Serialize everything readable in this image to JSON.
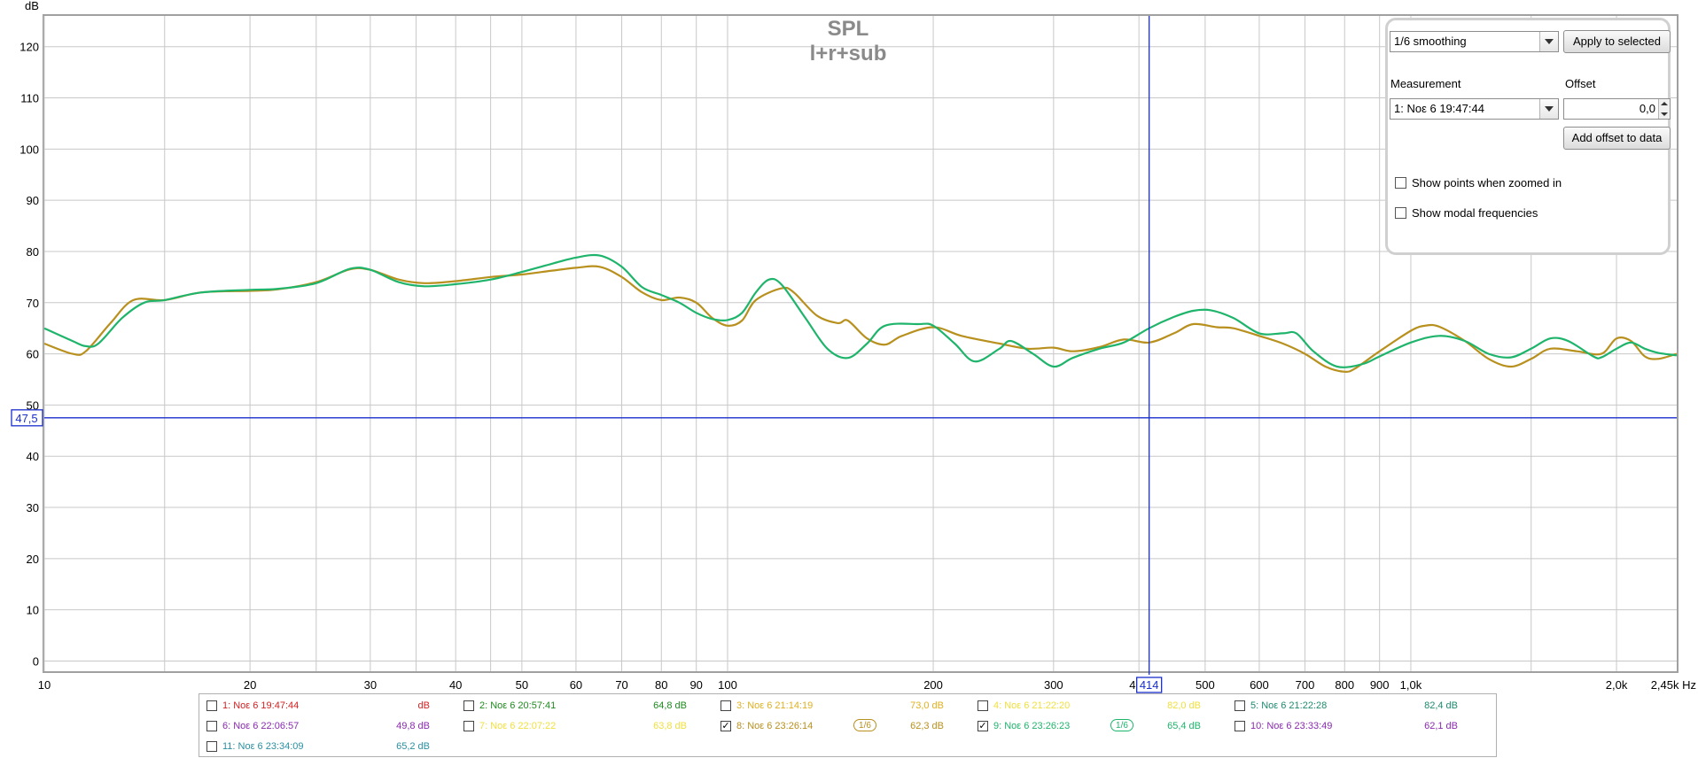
{
  "chart_data": {
    "type": "line",
    "title": "SPL",
    "subtitle": "l+r+sub",
    "ylabel": "dB",
    "xunit": "Hz",
    "xscale": "log",
    "xlim": [
      10,
      2450
    ],
    "ylim": [
      -2,
      126
    ],
    "grid": true,
    "y_ticks": [
      0,
      10,
      20,
      30,
      40,
      50,
      60,
      70,
      80,
      90,
      100,
      110,
      120
    ],
    "x_ticks": [
      {
        "v": 10,
        "label": "10"
      },
      {
        "v": 20,
        "label": "20"
      },
      {
        "v": 30,
        "label": "30"
      },
      {
        "v": 40,
        "label": "40"
      },
      {
        "v": 50,
        "label": "50"
      },
      {
        "v": 60,
        "label": "60"
      },
      {
        "v": 70,
        "label": "70"
      },
      {
        "v": 80,
        "label": "80"
      },
      {
        "v": 90,
        "label": "90"
      },
      {
        "v": 100,
        "label": "100"
      },
      {
        "v": 200,
        "label": "200"
      },
      {
        "v": 300,
        "label": "300"
      },
      {
        "v": 400,
        "label": "400"
      },
      {
        "v": 500,
        "label": "500"
      },
      {
        "v": 600,
        "label": "600"
      },
      {
        "v": 700,
        "label": "700"
      },
      {
        "v": 800,
        "label": "800"
      },
      {
        "v": 900,
        "label": "900"
      },
      {
        "v": 1000,
        "label": "1,0k"
      },
      {
        "v": 2000,
        "label": "2,0k"
      },
      {
        "v": 2450,
        "label": "2,45k Hz"
      }
    ],
    "minor_x_ticks": [
      15,
      25,
      35,
      45,
      1500
    ],
    "cursor": {
      "x": 414,
      "y": 47.5,
      "x_label": "414",
      "y_label": "47,5"
    },
    "series": [
      {
        "name": "8: Noε 6 23:26:14",
        "color": "#b8901e",
        "points": [
          [
            10,
            62
          ],
          [
            11,
            60
          ],
          [
            11.5,
            60.5
          ],
          [
            12.5,
            66
          ],
          [
            13.5,
            70.5
          ],
          [
            15,
            70.5
          ],
          [
            17,
            72
          ],
          [
            20,
            72.3
          ],
          [
            22,
            72.6
          ],
          [
            25,
            74
          ],
          [
            28,
            76.5
          ],
          [
            30,
            76.4
          ],
          [
            33,
            74.5
          ],
          [
            36,
            73.8
          ],
          [
            40,
            74.2
          ],
          [
            45,
            75
          ],
          [
            50,
            75.5
          ],
          [
            55,
            76.2
          ],
          [
            60,
            76.8
          ],
          [
            65,
            77
          ],
          [
            70,
            75
          ],
          [
            75,
            72
          ],
          [
            80,
            70.5
          ],
          [
            85,
            71
          ],
          [
            90,
            70
          ],
          [
            95,
            67
          ],
          [
            100,
            65.5
          ],
          [
            105,
            66.5
          ],
          [
            110,
            70.5
          ],
          [
            120,
            72.8
          ],
          [
            125,
            72
          ],
          [
            135,
            67.5
          ],
          [
            145,
            66
          ],
          [
            150,
            66.5
          ],
          [
            160,
            63
          ],
          [
            170,
            61.8
          ],
          [
            180,
            63.5
          ],
          [
            200,
            65.2
          ],
          [
            220,
            63.5
          ],
          [
            250,
            62
          ],
          [
            275,
            61
          ],
          [
            300,
            61.2
          ],
          [
            320,
            60.5
          ],
          [
            350,
            61.3
          ],
          [
            380,
            62.8
          ],
          [
            414,
            62.2
          ],
          [
            450,
            64
          ],
          [
            480,
            65.8
          ],
          [
            520,
            65.2
          ],
          [
            550,
            65
          ],
          [
            600,
            63.5
          ],
          [
            650,
            62
          ],
          [
            700,
            60
          ],
          [
            750,
            57.5
          ],
          [
            800,
            56.5
          ],
          [
            830,
            57.2
          ],
          [
            900,
            60.5
          ],
          [
            1000,
            64.5
          ],
          [
            1050,
            65.5
          ],
          [
            1100,
            65.3
          ],
          [
            1200,
            62.5
          ],
          [
            1300,
            59
          ],
          [
            1400,
            57.5
          ],
          [
            1500,
            59
          ],
          [
            1600,
            61
          ],
          [
            1750,
            60.5
          ],
          [
            1900,
            60
          ],
          [
            2000,
            63
          ],
          [
            2100,
            62.5
          ],
          [
            2200,
            59.5
          ],
          [
            2300,
            59
          ],
          [
            2450,
            60
          ]
        ]
      },
      {
        "name": "9: Noε 6 23:26:23",
        "color": "#1fb46b",
        "points": [
          [
            10,
            65
          ],
          [
            11,
            62.5
          ],
          [
            11.5,
            61.5
          ],
          [
            12,
            62
          ],
          [
            13,
            67
          ],
          [
            14,
            70
          ],
          [
            15,
            70.5
          ],
          [
            17,
            72
          ],
          [
            20,
            72.5
          ],
          [
            22,
            72.7
          ],
          [
            25,
            73.8
          ],
          [
            28,
            76.6
          ],
          [
            30,
            76.4
          ],
          [
            33,
            74
          ],
          [
            36,
            73.2
          ],
          [
            40,
            73.6
          ],
          [
            45,
            74.5
          ],
          [
            50,
            76
          ],
          [
            55,
            77.5
          ],
          [
            60,
            78.8
          ],
          [
            65,
            79.2
          ],
          [
            70,
            77
          ],
          [
            75,
            73
          ],
          [
            80,
            71.5
          ],
          [
            85,
            70
          ],
          [
            90,
            68
          ],
          [
            95,
            66.8
          ],
          [
            100,
            66.6
          ],
          [
            105,
            68
          ],
          [
            110,
            72
          ],
          [
            115,
            74.5
          ],
          [
            120,
            73.5
          ],
          [
            130,
            67
          ],
          [
            140,
            61
          ],
          [
            150,
            59.2
          ],
          [
            160,
            62
          ],
          [
            170,
            65.5
          ],
          [
            190,
            65.8
          ],
          [
            200,
            65.5
          ],
          [
            215,
            62
          ],
          [
            230,
            58.5
          ],
          [
            250,
            61
          ],
          [
            260,
            62.5
          ],
          [
            280,
            60
          ],
          [
            300,
            57.5
          ],
          [
            320,
            59.2
          ],
          [
            350,
            61
          ],
          [
            380,
            62.2
          ],
          [
            414,
            65
          ],
          [
            450,
            67.2
          ],
          [
            480,
            68.4
          ],
          [
            510,
            68.5
          ],
          [
            550,
            67
          ],
          [
            600,
            64
          ],
          [
            650,
            64
          ],
          [
            680,
            64
          ],
          [
            720,
            60.5
          ],
          [
            780,
            57.5
          ],
          [
            850,
            58
          ],
          [
            900,
            59.5
          ],
          [
            1000,
            62.2
          ],
          [
            1100,
            63.5
          ],
          [
            1200,
            62.5
          ],
          [
            1300,
            60
          ],
          [
            1400,
            59.3
          ],
          [
            1500,
            61
          ],
          [
            1600,
            63
          ],
          [
            1700,
            62.5
          ],
          [
            1850,
            59.5
          ],
          [
            1900,
            59.3
          ],
          [
            2000,
            61
          ],
          [
            2100,
            62.2
          ],
          [
            2200,
            61
          ],
          [
            2300,
            60.2
          ],
          [
            2450,
            59.7
          ]
        ]
      }
    ]
  },
  "controls": {
    "smoothing_value": "1/6 smoothing",
    "apply_button": "Apply to selected",
    "measurement_label": "Measurement",
    "measurement_value": "1: Noε 6 19:47:44",
    "offset_label": "Offset",
    "offset_value": "0,0",
    "add_offset_button": "Add offset to data",
    "show_points_label": "Show points when zoomed in",
    "show_modal_label": "Show modal frequencies"
  },
  "legend": {
    "items": [
      {
        "name": "1: Noε 6 19:47:44",
        "value": "dB",
        "color": "#d42020",
        "checked": false
      },
      {
        "name": "2: Noε 6 20:57:41",
        "value": "64,8 dB",
        "color": "#1e8a1e",
        "checked": false
      },
      {
        "name": "3: Noε 6 21:14:19",
        "value": "73,0 dB",
        "color": "#e0b020",
        "checked": false
      },
      {
        "name": "4: Noε 6 21:22:20",
        "value": "82,0 dB",
        "color": "#f0e040",
        "checked": false
      },
      {
        "name": "5: Noε 6 21:22:28",
        "value": "82,4 dB",
        "color": "#1e8a6e",
        "checked": false
      },
      {
        "name": "6: Noε 6 22:06:57",
        "value": "49,8 dB",
        "color": "#8a2ab0",
        "checked": false
      },
      {
        "name": "7: Noε 6 22:07:22",
        "value": "63,8 dB",
        "color": "#f0e040",
        "checked": false
      },
      {
        "name": "8: Noε 6 23:26:14",
        "value": "62,3 dB",
        "color": "#b8901e",
        "checked": true,
        "smoothing": "1/6"
      },
      {
        "name": "9: Noε 6 23:26:23",
        "value": "65,4 dB",
        "color": "#1fb46b",
        "checked": true,
        "smoothing": "1/6"
      },
      {
        "name": "10: Noε 6 23:33:49",
        "value": "62,1 dB",
        "color": "#8a2ab0",
        "checked": false
      },
      {
        "name": "11: Noε 6 23:34:09",
        "value": "65,2 dB",
        "color": "#2a90a0",
        "checked": false
      }
    ]
  },
  "colors": {
    "grid": "#c8c8c8",
    "cursor": "#1a2ecc",
    "frame": "#a0a0a0"
  }
}
